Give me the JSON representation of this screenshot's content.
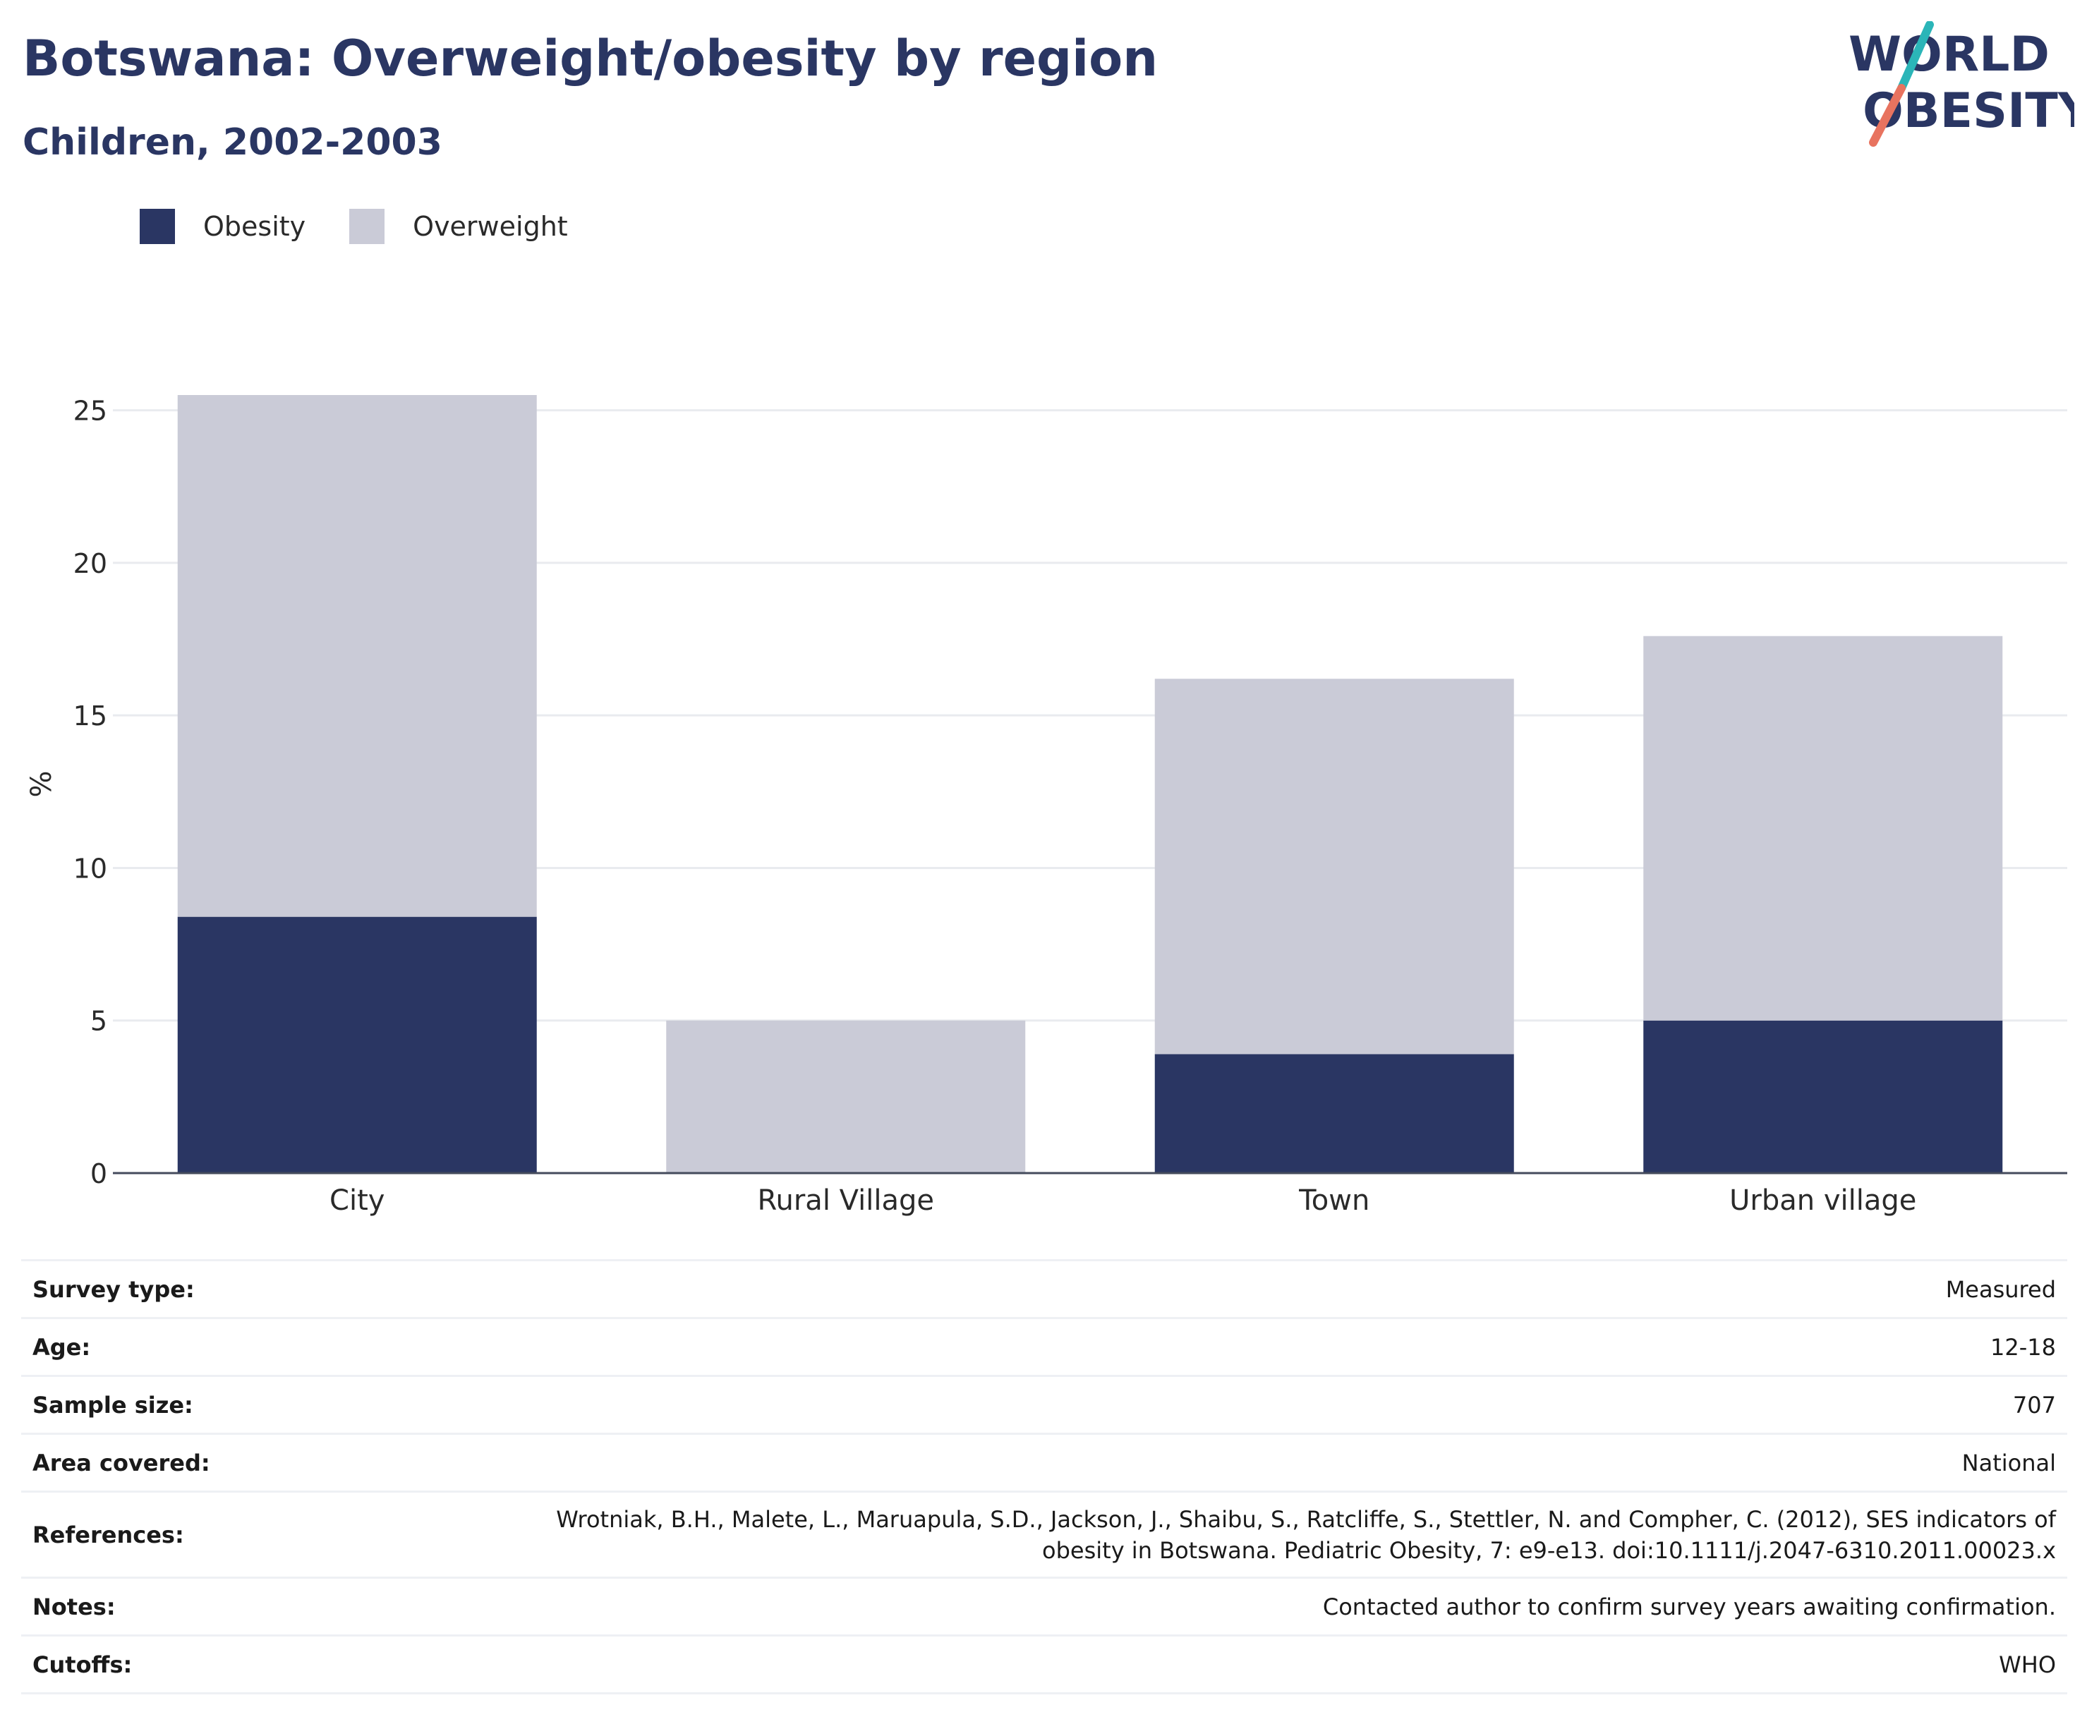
{
  "header": {
    "title": "Botswana: Overweight/obesity by region",
    "subtitle": "Children, 2002-2003"
  },
  "logo": {
    "line1": "WORLD",
    "line2": "OBESITY",
    "accent_teal": "#2bb5b8",
    "accent_coral": "#e8735f"
  },
  "legend": [
    {
      "label": "Obesity",
      "color": "#2a3663"
    },
    {
      "label": "Overweight",
      "color": "#cacbd7"
    }
  ],
  "chart_data": {
    "type": "bar",
    "stacked": true,
    "categories": [
      "City",
      "Rural Village",
      "Town",
      "Urban village"
    ],
    "series": [
      {
        "name": "Obesity",
        "color": "#2a3663",
        "values": [
          8.4,
          0,
          3.9,
          5.0
        ]
      },
      {
        "name": "Overweight",
        "color": "#cacbd7",
        "values": [
          17.1,
          5.0,
          12.3,
          12.6
        ]
      }
    ],
    "ylabel": "%",
    "xlabel": "",
    "ylim": [
      0,
      25.5
    ],
    "yticks": [
      0,
      5,
      10,
      15,
      20,
      25
    ],
    "grid": true,
    "legend_position": "top-left"
  },
  "info": [
    {
      "key": "Survey type:",
      "value": "Measured"
    },
    {
      "key": "Age:",
      "value": "12-18"
    },
    {
      "key": "Sample size:",
      "value": "707"
    },
    {
      "key": "Area covered:",
      "value": "National"
    },
    {
      "key": "References:",
      "value_line1": "Wrotniak, B.H., Malete, L., Maruapula, S.D., Jackson, J., Shaibu, S., Ratcliffe, S., Stettler, N. and Compher, C. (2012), SES indicators of",
      "value_line2": "obesity in Botswana. Pediatric Obesity, 7: e9-e13. doi:10.1111/j.2047-6310.2011.00023.x"
    },
    {
      "key": "Notes:",
      "value": "Contacted author to confirm survey years awaiting confirmation."
    },
    {
      "key": "Cutoffs:",
      "value": "WHO"
    }
  ]
}
